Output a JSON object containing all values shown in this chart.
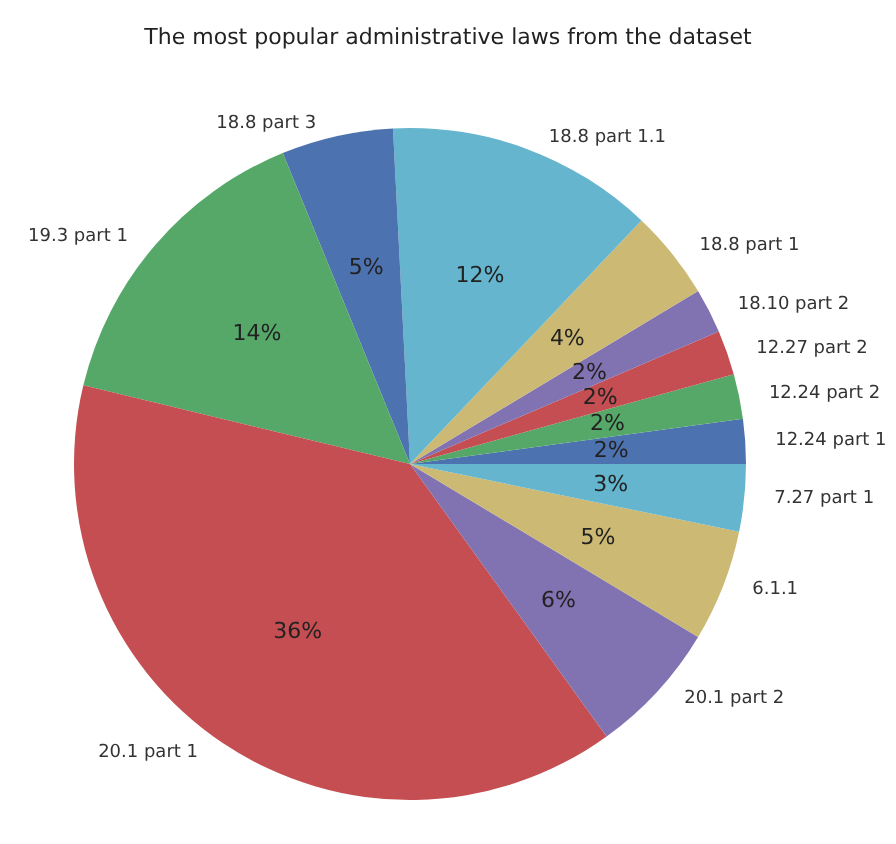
{
  "chart_data": {
    "type": "pie",
    "title": "The most popular administrative laws from the dataset",
    "categories": [
      "12.24 part 1",
      "12.24 part 2",
      "12.27 part 2",
      "18.10 part 2",
      "18.8 part 1",
      "18.8 part 1.1",
      "18.8 part 3",
      "19.3 part 1",
      "20.1 part 1",
      "20.1 part 2",
      "6.1.1",
      "7.27 part 1"
    ],
    "values": [
      2,
      2,
      2,
      2,
      4,
      12,
      5,
      14,
      36,
      6,
      5,
      3
    ],
    "value_labels": [
      "2%",
      "2%",
      "2%",
      "2%",
      "4%",
      "12%",
      "5%",
      "14%",
      "36%",
      "6%",
      "5%",
      "3%"
    ],
    "colors": [
      "#4c72b0",
      "#55a868",
      "#c44e52",
      "#8172b2",
      "#ccb974",
      "#64b5cd",
      "#4c72b0",
      "#55a868",
      "#c44e52",
      "#8172b2",
      "#ccb974",
      "#64b5cd"
    ],
    "legend": false
  }
}
